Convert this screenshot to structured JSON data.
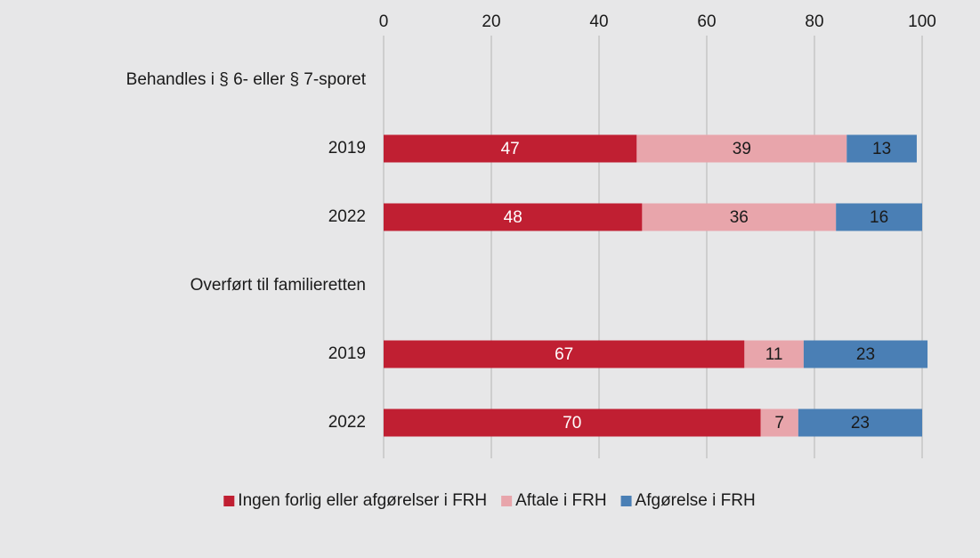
{
  "chart_data": {
    "type": "stacked-barh",
    "categories": [
      "Behandles i § 6- eller § 7-sporet",
      "2019",
      "2022",
      "Overført til familieretten",
      "2019",
      "2022"
    ],
    "series": [
      {
        "name": "Ingen forlig eller afgørelser i FRH",
        "color": "#c01f32",
        "values": [
          null,
          47,
          48,
          null,
          67,
          70
        ]
      },
      {
        "name": "Aftale i FRH",
        "color": "#e8a5ab",
        "values": [
          null,
          39,
          36,
          null,
          11,
          7
        ]
      },
      {
        "name": "Afgørelse i FRH",
        "color": "#4a7fb5",
        "values": [
          null,
          13,
          16,
          null,
          23,
          23
        ]
      }
    ],
    "xlim": [
      0,
      100
    ],
    "xticks": [
      0,
      20,
      40,
      60,
      80,
      100
    ],
    "grid": true,
    "legend": "bottom"
  }
}
